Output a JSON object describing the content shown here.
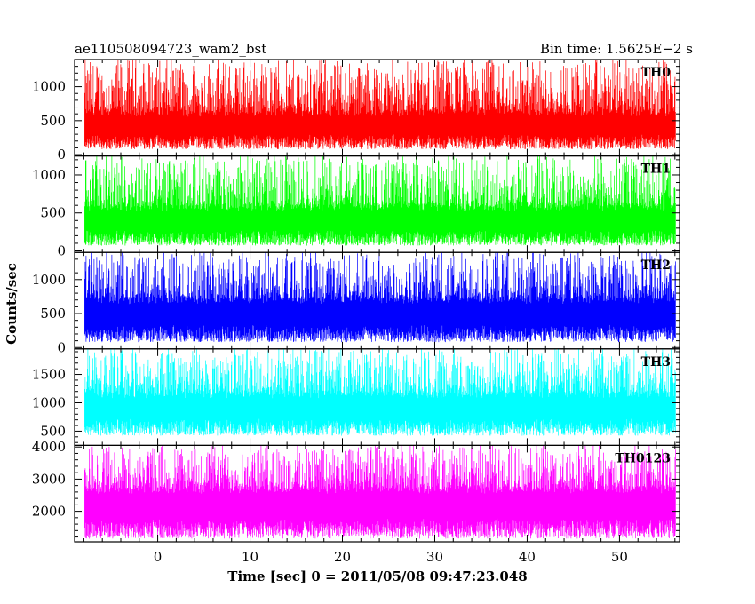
{
  "chart_data": {
    "type": "line",
    "title_left": "ae110508094723_wam2_bst",
    "title_right": "Bin time: 1.5625E−2 s",
    "xlabel": "Time [sec] 0 = 2011/05/08 09:47:23.048",
    "ylabel": "Counts/sec",
    "xlim": [
      -9,
      56.5
    ],
    "x_ticks": [
      0,
      10,
      20,
      30,
      40,
      50
    ],
    "x_tick_labels": [
      "0",
      "10",
      "20",
      "30",
      "40",
      "50"
    ],
    "data_x_range": [
      -7.9,
      56.1
    ],
    "bin_time": 0.015625,
    "panels": [
      {
        "name": "TH0",
        "color": "#ff0000",
        "ylim": [
          -20,
          1400
        ],
        "ticks": [
          0,
          500,
          1000
        ],
        "tick_labels": [
          "0",
          "500",
          "1000"
        ],
        "baseline": 560,
        "low": 80,
        "high": 1400
      },
      {
        "name": "TH1",
        "color": "#00ff00",
        "ylim": [
          -20,
          1250
        ],
        "ticks": [
          0,
          500,
          1000
        ],
        "tick_labels": [
          "0",
          "500",
          "1000"
        ],
        "baseline": 520,
        "low": 70,
        "high": 1250
      },
      {
        "name": "TH2",
        "color": "#0000ff",
        "ylim": [
          -20,
          1400
        ],
        "ticks": [
          0,
          500,
          1000
        ],
        "tick_labels": [
          "0",
          "500",
          "1000"
        ],
        "baseline": 640,
        "low": 80,
        "high": 1400
      },
      {
        "name": "TH3",
        "color": "#00ffff",
        "ylim": [
          250,
          1950
        ],
        "ticks": [
          500,
          1000,
          1500
        ],
        "tick_labels": [
          "500",
          "1000",
          "1500"
        ],
        "baseline": 1080,
        "low": 420,
        "high": 1950
      },
      {
        "name": "TH0123",
        "color": "#ff00ff",
        "ylim": [
          1050,
          4050
        ],
        "ticks": [
          2000,
          3000,
          4000
        ],
        "tick_labels": [
          "2000",
          "3000",
          "4000"
        ],
        "baseline": 2550,
        "low": 1150,
        "high": 4050
      }
    ]
  }
}
